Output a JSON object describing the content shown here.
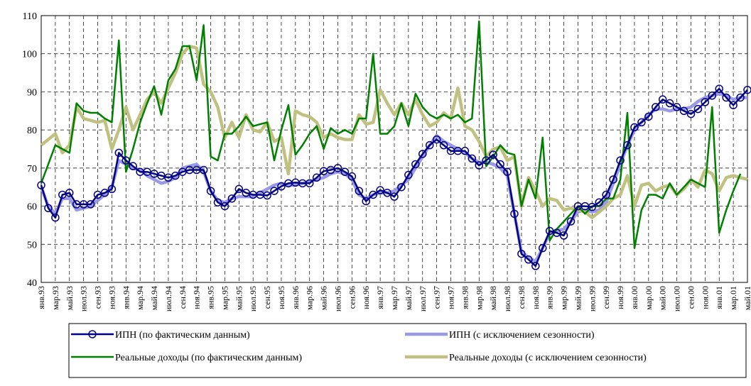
{
  "chart_data": {
    "type": "line",
    "categories": [
      "янв.93",
      null,
      "мар.93",
      null,
      "май.93",
      null,
      "июл.93",
      null,
      "сен.93",
      null,
      "ноя.93",
      null,
      "янв.94",
      null,
      "мар.94",
      null,
      "май.94",
      null,
      "июл.94",
      null,
      "сен.94",
      null,
      "ноя.94",
      null,
      "янв.95",
      null,
      "мар.95",
      null,
      "май.95",
      null,
      "июл.95",
      null,
      "сен.95",
      null,
      "ноя.95",
      null,
      "янв.96",
      null,
      "мар.96",
      null,
      "май.96",
      null,
      "июл.96",
      null,
      "сен.96",
      null,
      "ноя.96",
      null,
      "янв.97",
      null,
      "мар.97",
      null,
      "май.97",
      null,
      "июл.97",
      null,
      "сен.97",
      null,
      "ноя.97",
      null,
      "янв.98",
      null,
      "мар.98",
      null,
      "май.98",
      null,
      "июл.98",
      null,
      "сен.98",
      null,
      "ноя.98",
      null,
      "янв.99",
      null,
      "мар.99",
      null,
      "май.99",
      null,
      "июл.99",
      null,
      "сен.99",
      null,
      "ноя.99",
      null,
      "янв.00",
      null,
      "мар.00",
      null,
      "май.00",
      null,
      "июл.00",
      null,
      "сен.00",
      null,
      "ноя.00",
      null,
      "янв.01",
      null,
      "мар.01",
      null,
      "май.01"
    ],
    "series": [
      {
        "name": "ИПН (по фактическим данным)",
        "color": "#000080",
        "marker": "circle",
        "values": [
          65.5,
          59.5,
          57,
          63,
          63.5,
          60.5,
          60.5,
          60.5,
          63,
          63.5,
          64.5,
          74,
          72,
          70.5,
          69,
          69,
          68.5,
          68,
          67.5,
          68,
          69,
          69.5,
          69.5,
          69.5,
          64,
          61,
          60,
          62,
          64.5,
          63.5,
          63,
          63,
          62.8,
          64,
          65.2,
          66,
          66.2,
          66,
          66,
          67.5,
          69.2,
          69.5,
          70,
          69,
          67.8,
          64,
          61.3,
          63,
          64.2,
          63.5,
          62.5,
          65,
          68.2,
          71,
          73.7,
          76,
          77.5,
          76,
          74.5,
          74.5,
          74.5,
          72.5,
          70.7,
          72,
          73.5,
          71,
          69,
          58,
          47.5,
          46,
          44.3,
          49,
          53.5,
          53,
          52.3,
          56,
          60,
          60,
          59.8,
          61,
          63,
          67,
          72,
          76,
          80.7,
          82,
          83.5,
          86,
          88,
          87,
          86,
          85,
          84.2,
          85.5,
          87.3,
          89,
          90.8,
          88.5,
          86.5,
          88.5,
          90.5
        ]
      },
      {
        "name": "ИПН (с исключением сезонности)",
        "color": "#9999e6",
        "values": [
          65,
          60,
          58,
          62,
          62,
          59,
          59.5,
          60,
          61.5,
          63,
          65,
          72,
          71,
          70,
          69.5,
          68,
          67,
          66,
          66.5,
          67.5,
          70,
          70.5,
          71,
          69,
          64,
          61.5,
          61,
          62,
          62.5,
          62.5,
          62.5,
          63.5,
          64.5,
          65.5,
          66,
          65.5,
          65.5,
          66,
          66.5,
          67,
          67.5,
          68.5,
          69,
          68.5,
          67,
          63,
          62,
          63,
          63.5,
          63.5,
          64,
          65.5,
          67,
          70,
          73,
          76,
          78.5,
          77,
          76,
          75,
          74,
          72.5,
          71.5,
          71.5,
          71,
          70,
          68,
          58,
          48,
          46.5,
          45.5,
          49,
          53,
          53.5,
          54,
          56,
          58.5,
          59,
          58.5,
          59,
          61,
          66,
          71,
          76,
          80,
          82,
          84,
          85.5,
          85.5,
          85,
          85.5,
          85.5,
          86,
          87.5,
          88.5,
          89,
          89.5,
          89,
          88,
          88.5,
          88.5
        ]
      },
      {
        "name": "Реальные доходы (по фактическим данным)",
        "color": "#008000",
        "values": [
          66,
          71,
          76,
          75,
          74,
          87,
          85,
          84.5,
          84.5,
          83,
          82,
          103.5,
          69,
          75,
          82,
          87,
          91.5,
          84,
          93,
          96,
          102,
          102,
          93,
          107.5,
          73,
          72,
          79,
          79,
          81,
          83.5,
          81,
          81.5,
          82,
          72,
          80,
          86.5,
          73.5,
          76,
          79,
          81,
          75,
          80.5,
          79,
          80,
          79,
          83,
          83,
          100,
          79,
          79,
          81,
          87,
          81,
          89.5,
          86,
          84,
          83,
          84,
          83,
          84,
          82,
          83,
          108.5,
          70.5,
          73,
          76,
          74,
          73.5,
          60,
          67,
          62,
          78,
          51,
          54,
          56,
          58,
          60,
          58,
          60,
          60,
          62,
          62,
          67,
          84.5,
          49,
          59,
          63,
          63,
          62,
          66,
          63,
          65,
          67,
          66,
          65,
          86,
          53,
          59,
          64,
          68.5,
          null
        ]
      },
      {
        "name": "Реальные доходы (с исключением сезонности)",
        "color": "#c0c080",
        "values": [
          76,
          77.5,
          79,
          74,
          76,
          86,
          83,
          82.5,
          82,
          82.5,
          75,
          80,
          86,
          80,
          84,
          88,
          90,
          87,
          91,
          95,
          100,
          102,
          101.5,
          92,
          90,
          86,
          78,
          82,
          78,
          84,
          80,
          79.5,
          82,
          77,
          78,
          68.5,
          85,
          84,
          83.5,
          82,
          78,
          79,
          78,
          77.5,
          77.5,
          84,
          81.5,
          82,
          90.5,
          87,
          84,
          87,
          84,
          88,
          84,
          81,
          82,
          84.5,
          83,
          91,
          81,
          80,
          77,
          73,
          75,
          75.5,
          72,
          73,
          60,
          67.5,
          64,
          60,
          62,
          61.5,
          59,
          59.5,
          59,
          58.5,
          57,
          58.5,
          60,
          62,
          63,
          68,
          60,
          65.5,
          66,
          64,
          65,
          65.5,
          63,
          64.5,
          67,
          65,
          69.5,
          68.5,
          64,
          67.5,
          68,
          67.5,
          67
        ]
      }
    ],
    "ylim": [
      40,
      110
    ],
    "yticks": [
      40,
      50,
      60,
      70,
      80,
      90,
      100,
      110
    ],
    "grid": true
  }
}
